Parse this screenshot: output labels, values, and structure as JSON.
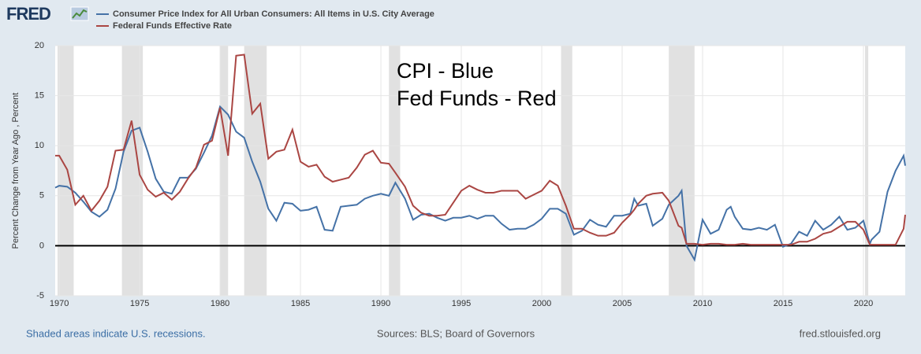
{
  "chart_data": {
    "type": "line",
    "logo": "FRED",
    "y_label": "Percent Change from Year Ago , Percent",
    "annotation": [
      "CPI - Blue",
      "Fed Funds - Red"
    ],
    "footer": {
      "left": "Shaded areas indicate U.S. recessions.",
      "center": "Sources: BLS; Board of Governors",
      "right": "fred.stlouisfed.org"
    },
    "xlim": [
      1969.75,
      2022.6
    ],
    "xticks": [
      1970,
      1975,
      1980,
      1985,
      1990,
      1995,
      2000,
      2005,
      2010,
      2015,
      2020
    ],
    "ylim": [
      -5,
      20
    ],
    "yticks": [
      -5,
      0,
      5,
      10,
      15,
      20
    ],
    "grid": true,
    "reference_line": 0,
    "recession_color": "#e1e1e1",
    "recessions": [
      [
        1969.9,
        1970.9
      ],
      [
        1973.9,
        1975.2
      ],
      [
        1980.0,
        1980.5
      ],
      [
        1981.5,
        1982.9
      ],
      [
        1990.5,
        1991.2
      ],
      [
        2001.2,
        2001.9
      ],
      [
        2007.9,
        2009.5
      ],
      [
        2020.1,
        2020.3
      ]
    ],
    "x": [
      1969.75,
      1970.0,
      1970.5,
      1971.0,
      1971.5,
      1972.0,
      1972.5,
      1973.0,
      1973.5,
      1974.0,
      1974.5,
      1975.0,
      1975.5,
      1976.0,
      1976.5,
      1977.0,
      1977.5,
      1978.0,
      1978.5,
      1979.0,
      1979.5,
      1980.0,
      1980.5,
      1981.0,
      1981.5,
      1982.0,
      1982.5,
      1983.0,
      1983.5,
      1984.0,
      1984.5,
      1985.0,
      1985.5,
      1986.0,
      1986.5,
      1987.0,
      1987.5,
      1988.0,
      1988.5,
      1989.0,
      1989.5,
      1990.0,
      1990.5,
      1990.9,
      1991.5,
      1992.0,
      1992.5,
      1993.0,
      1993.5,
      1994.0,
      1994.5,
      1995.0,
      1995.5,
      1996.0,
      1996.5,
      1997.0,
      1997.5,
      1998.0,
      1998.5,
      1999.0,
      1999.5,
      2000.0,
      2000.5,
      2001.0,
      2001.5,
      2002.0,
      2002.5,
      2003.0,
      2003.5,
      2004.0,
      2004.5,
      2005.0,
      2005.5,
      2005.75,
      2006.0,
      2006.5,
      2006.9,
      2007.5,
      2007.9,
      2008.5,
      2008.7,
      2009.0,
      2009.5,
      2010.0,
      2010.5,
      2011.0,
      2011.5,
      2011.75,
      2012.0,
      2012.5,
      2013.0,
      2013.5,
      2014.0,
      2014.5,
      2015.0,
      2015.5,
      2016.0,
      2016.5,
      2017.0,
      2017.5,
      2018.0,
      2018.5,
      2019.0,
      2019.5,
      2020.0,
      2020.4,
      2020.5,
      2021.0,
      2021.5,
      2022.0,
      2022.5,
      2022.6
    ],
    "series": [
      {
        "name": "Consumer Price Index for All Urban Consumers: All Items in U.S. City Average",
        "color": "#4572a7",
        "values": [
          5.8,
          6.0,
          5.9,
          5.3,
          4.4,
          3.4,
          2.9,
          3.6,
          5.7,
          9.4,
          11.5,
          11.8,
          9.4,
          6.7,
          5.4,
          5.2,
          6.8,
          6.8,
          7.7,
          9.3,
          11.0,
          13.9,
          13.1,
          11.4,
          10.8,
          8.4,
          6.4,
          3.7,
          2.5,
          4.3,
          4.2,
          3.5,
          3.6,
          3.9,
          1.6,
          1.5,
          3.9,
          4.0,
          4.1,
          4.7,
          5.0,
          5.2,
          5.0,
          6.3,
          4.7,
          2.6,
          3.1,
          3.2,
          2.8,
          2.5,
          2.8,
          2.8,
          3.0,
          2.7,
          3.0,
          3.0,
          2.2,
          1.6,
          1.7,
          1.7,
          2.1,
          2.7,
          3.7,
          3.7,
          3.2,
          1.1,
          1.5,
          2.6,
          2.1,
          1.9,
          3.0,
          3.0,
          3.2,
          4.7,
          4.0,
          4.2,
          2.0,
          2.7,
          4.1,
          5.0,
          5.5,
          0.0,
          -1.4,
          2.6,
          1.2,
          1.6,
          3.6,
          3.9,
          2.9,
          1.7,
          1.6,
          1.8,
          1.6,
          2.1,
          -0.1,
          0.2,
          1.4,
          1.0,
          2.5,
          1.6,
          2.1,
          2.9,
          1.6,
          1.8,
          2.5,
          0.2,
          0.6,
          1.4,
          5.4,
          7.5,
          9.0,
          8.0
        ]
      },
      {
        "name": "Federal Funds Effective Rate",
        "color": "#aa4643",
        "values": [
          9.0,
          9.0,
          7.6,
          4.1,
          5.0,
          3.5,
          4.5,
          5.9,
          9.5,
          9.6,
          12.5,
          7.1,
          5.6,
          4.9,
          5.3,
          4.6,
          5.4,
          6.7,
          7.8,
          10.1,
          10.5,
          13.8,
          9.0,
          19.0,
          19.1,
          13.2,
          14.2,
          8.7,
          9.4,
          9.6,
          11.6,
          8.4,
          7.9,
          8.1,
          6.9,
          6.4,
          6.6,
          6.8,
          7.8,
          9.1,
          9.5,
          8.3,
          8.2,
          7.3,
          5.9,
          4.0,
          3.3,
          3.0,
          3.0,
          3.1,
          4.3,
          5.5,
          6.0,
          5.6,
          5.3,
          5.3,
          5.5,
          5.5,
          5.5,
          4.7,
          5.1,
          5.5,
          6.5,
          6.0,
          4.0,
          1.7,
          1.7,
          1.3,
          1.0,
          1.0,
          1.3,
          2.3,
          3.1,
          3.6,
          4.2,
          5.0,
          5.2,
          5.3,
          4.5,
          2.0,
          1.8,
          0.2,
          0.2,
          0.1,
          0.2,
          0.2,
          0.1,
          0.1,
          0.1,
          0.2,
          0.1,
          0.1,
          0.1,
          0.1,
          0.1,
          0.1,
          0.4,
          0.4,
          0.7,
          1.2,
          1.4,
          1.9,
          2.4,
          2.4,
          1.6,
          0.1,
          0.1,
          0.1,
          0.1,
          0.1,
          1.7,
          3.1
        ]
      }
    ]
  }
}
